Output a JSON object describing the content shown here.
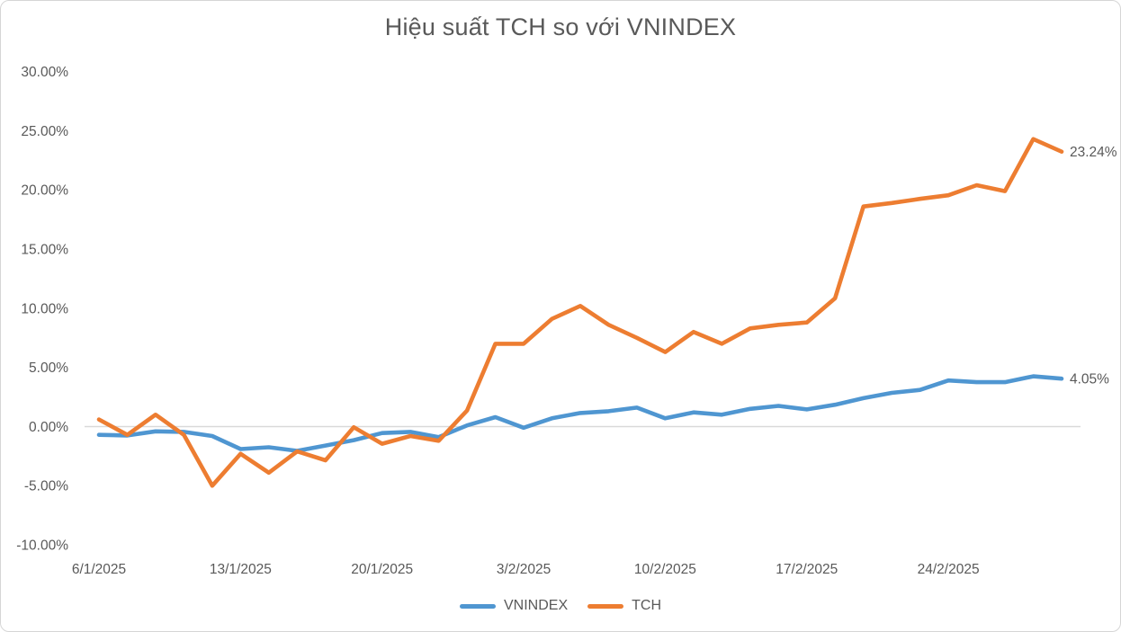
{
  "chart_data": {
    "type": "line",
    "title": "Hiệu suất TCH so với VNINDEX",
    "x": [
      "6/1/2025",
      "7/1/2025",
      "8/1/2025",
      "9/1/2025",
      "10/1/2025",
      "13/1/2025",
      "14/1/2025",
      "15/1/2025",
      "16/1/2025",
      "17/1/2025",
      "20/1/2025",
      "21/1/2025",
      "22/1/2025",
      "23/1/2025",
      "24/1/2025",
      "3/2/2025",
      "4/2/2025",
      "5/2/2025",
      "6/2/2025",
      "7/2/2025",
      "10/2/2025",
      "11/2/2025",
      "12/2/2025",
      "13/2/2025",
      "14/2/2025",
      "17/2/2025",
      "18/2/2025",
      "19/2/2025",
      "20/2/2025",
      "21/2/2025",
      "24/2/2025",
      "25/2/2025",
      "26/2/2025",
      "27/2/2025",
      "28/2/2025"
    ],
    "series": [
      {
        "name": "VNINDEX",
        "color": "#4F96D1",
        "end_label": "4.05%",
        "values": [
          -0.7,
          -0.75,
          -0.4,
          -0.45,
          -0.8,
          -1.9,
          -1.75,
          -2.05,
          -1.6,
          -1.15,
          -0.55,
          -0.45,
          -0.9,
          0.1,
          0.8,
          -0.1,
          0.7,
          1.15,
          1.3,
          1.6,
          0.7,
          1.2,
          1.0,
          1.5,
          1.75,
          1.45,
          1.85,
          2.4,
          2.85,
          3.1,
          3.9,
          3.75,
          3.75,
          4.25,
          4.05
        ]
      },
      {
        "name": "TCH",
        "color": "#ED7D31",
        "end_label": "23.24%",
        "values": [
          0.6,
          -0.7,
          1.0,
          -0.7,
          -5.0,
          -2.3,
          -3.9,
          -2.1,
          -2.85,
          -0.05,
          -1.45,
          -0.8,
          -1.2,
          1.35,
          7.0,
          7.0,
          9.1,
          10.2,
          8.6,
          7.5,
          6.3,
          8.0,
          7.0,
          8.3,
          8.6,
          8.8,
          10.85,
          18.6,
          18.9,
          19.25,
          19.55,
          20.4,
          19.9,
          24.3,
          23.24
        ]
      }
    ],
    "y_axis": {
      "min": -10,
      "max": 30,
      "step": 5,
      "tick_labels": [
        "30.00%",
        "25.00%",
        "20.00%",
        "15.00%",
        "10.00%",
        "5.00%",
        "0.00%",
        "-5.00%",
        "-10.00%"
      ]
    },
    "x_axis": {
      "tick_labels": [
        "6/1/2025",
        "13/1/2025",
        "20/1/2025",
        "3/2/2025",
        "10/2/2025",
        "17/2/2025",
        "24/2/2025"
      ],
      "tick_indices": [
        0,
        5,
        10,
        15,
        20,
        25,
        30
      ]
    },
    "grid": "zero-line-only",
    "legend_position": "bottom-center",
    "axis_line_color": "#D9D9D9",
    "text_color": "#595959"
  }
}
